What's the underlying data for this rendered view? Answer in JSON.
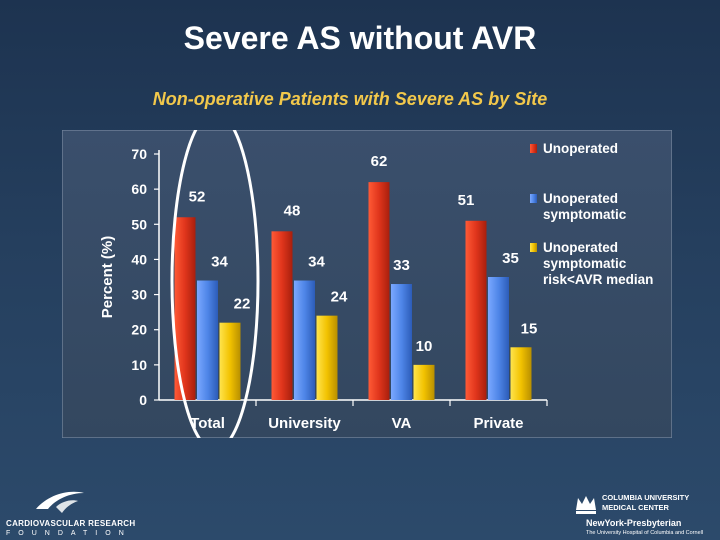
{
  "slide": {
    "title": "Severe AS without AVR"
  },
  "chart_data": {
    "type": "bar",
    "title": "Non-operative Patients with Severe AS by Site",
    "ylabel": "Percent (%)",
    "xlabel": "",
    "ylim": [
      0,
      70
    ],
    "yticks": [
      0,
      10,
      20,
      30,
      40,
      50,
      60,
      70
    ],
    "categories": [
      "Total",
      "University",
      "VA",
      "Private"
    ],
    "series": [
      {
        "name": "Unoperated",
        "color": "#e0351c",
        "values": [
          52,
          48,
          62,
          51
        ]
      },
      {
        "name": "Unoperated symptomatic",
        "color": "#4f86e8",
        "values": [
          34,
          34,
          33,
          35
        ]
      },
      {
        "name": "Unoperated symptomatic risk<AVR median",
        "color": "#f2c200",
        "values": [
          22,
          24,
          10,
          15
        ]
      }
    ],
    "legend_position": "right",
    "highlighted_category": "Total",
    "legend_lines": [
      [
        "Unoperated"
      ],
      [
        "Unoperated",
        "symptomatic"
      ],
      [
        "Unoperated",
        "symptomatic",
        "risk<AVR median"
      ]
    ]
  },
  "footer": {
    "left_org_line1": "CARDIOVASCULAR RESEARCH",
    "left_org_line2": "FOUNDATION",
    "right_line1": "COLUMBIA UNIVERSITY",
    "right_line2": "MEDICAL CENTER",
    "right_line3": "NewYork-Presbyterian",
    "right_line4": "The University Hospital of Columbia and Cornell"
  }
}
